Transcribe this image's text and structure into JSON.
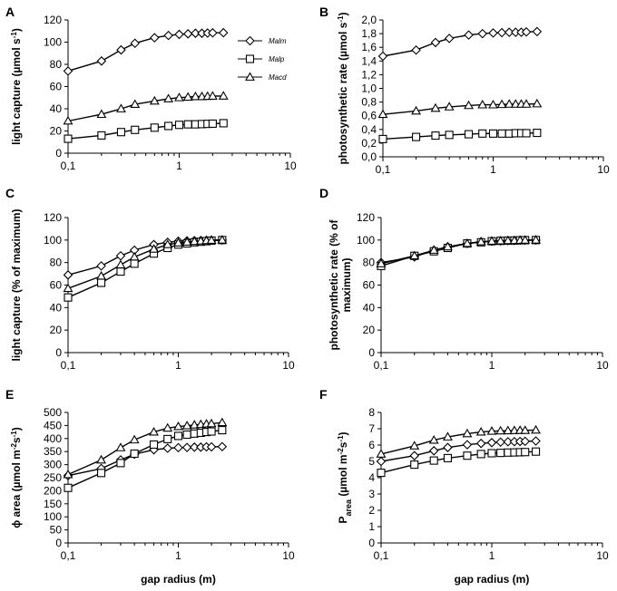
{
  "chart_data": [
    {
      "type": "line",
      "panel": "A",
      "xscale": "log",
      "xlim": [
        0.1,
        10
      ],
      "xticks": [
        "0,1",
        "1",
        "10"
      ],
      "xlabel": "",
      "ylabel": [
        "light capture (µmol s",
        "-1",
        ")"
      ],
      "ylim": [
        0,
        120
      ],
      "yticks": [
        "0",
        "20",
        "40",
        "60",
        "80",
        "100",
        "120"
      ],
      "x": [
        0.1,
        0.2,
        0.3,
        0.4,
        0.6,
        0.8,
        1.0,
        1.2,
        1.4,
        1.6,
        1.8,
        2.0,
        2.5
      ],
      "legend": {
        "placement": "top-right",
        "entries": [
          "Malm",
          "Malp",
          "Macd"
        ]
      },
      "series": [
        {
          "name": "Malm",
          "marker": "diamond",
          "values": [
            74,
            83,
            93,
            99,
            104,
            106,
            107,
            107.5,
            108,
            108,
            108.2,
            108.4,
            108.5
          ]
        },
        {
          "name": "Malp",
          "marker": "square",
          "values": [
            13,
            16,
            19,
            21,
            23,
            24.5,
            25.5,
            26,
            26,
            26.2,
            26.4,
            26.6,
            27
          ]
        },
        {
          "name": "Macd",
          "marker": "triangle",
          "values": [
            29,
            35,
            40,
            44,
            47,
            49,
            50,
            50.5,
            51,
            51,
            51.2,
            51.4,
            51.5
          ]
        }
      ]
    },
    {
      "type": "line",
      "panel": "B",
      "xscale": "log",
      "xlim": [
        0.1,
        10
      ],
      "xticks": [
        "0,1",
        "1",
        "10"
      ],
      "xlabel": "",
      "ylabel": [
        "photosynthetic rate (µmol s",
        "-1",
        ")"
      ],
      "ylim": [
        0,
        2.0
      ],
      "yticks": [
        "0,0",
        "0,2",
        "0,4",
        "0,6",
        "0,8",
        "1,0",
        "1,2",
        "1,4",
        "1,6",
        "1,8",
        "2,0"
      ],
      "x": [
        0.1,
        0.2,
        0.3,
        0.4,
        0.6,
        0.8,
        1.0,
        1.2,
        1.4,
        1.6,
        1.8,
        2.0,
        2.5
      ],
      "series": [
        {
          "name": "Malm",
          "marker": "diamond",
          "values": [
            1.47,
            1.56,
            1.67,
            1.73,
            1.78,
            1.8,
            1.81,
            1.815,
            1.82,
            1.82,
            1.82,
            1.825,
            1.83
          ]
        },
        {
          "name": "Malp",
          "marker": "square",
          "values": [
            0.26,
            0.29,
            0.31,
            0.32,
            0.33,
            0.34,
            0.34,
            0.34,
            0.34,
            0.345,
            0.345,
            0.345,
            0.35
          ]
        },
        {
          "name": "Macd",
          "marker": "triangle",
          "values": [
            0.62,
            0.67,
            0.71,
            0.73,
            0.75,
            0.76,
            0.76,
            0.765,
            0.77,
            0.77,
            0.77,
            0.77,
            0.775
          ]
        }
      ]
    },
    {
      "type": "line",
      "panel": "C",
      "xscale": "log",
      "xlim": [
        0.1,
        10
      ],
      "xticks": [
        "0,1",
        "1",
        "10"
      ],
      "xlabel": "",
      "ylabel": [
        "light capture (% of maximum)"
      ],
      "ylim": [
        0,
        120
      ],
      "yticks": [
        "0",
        "20",
        "40",
        "60",
        "80",
        "100",
        "120"
      ],
      "x": [
        0.1,
        0.2,
        0.3,
        0.4,
        0.6,
        0.8,
        1.0,
        1.2,
        1.4,
        1.6,
        1.8,
        2.0,
        2.5
      ],
      "series": [
        {
          "name": "Malm",
          "marker": "diamond",
          "values": [
            69,
            77,
            86,
            91,
            96,
            98,
            99,
            99.3,
            99.5,
            99.6,
            99.8,
            99.9,
            100
          ]
        },
        {
          "name": "Malp",
          "marker": "square",
          "values": [
            49,
            62,
            72,
            79,
            88,
            93,
            96,
            97,
            98,
            98.5,
            99,
            99.5,
            100
          ]
        },
        {
          "name": "Macd",
          "marker": "triangle",
          "values": [
            57,
            68,
            78,
            85,
            92,
            96,
            97.5,
            98.2,
            98.8,
            99.2,
            99.5,
            99.8,
            100
          ]
        }
      ]
    },
    {
      "type": "line",
      "panel": "D",
      "xscale": "log",
      "xlim": [
        0.1,
        10
      ],
      "xticks": [
        "0,1",
        "1",
        "10"
      ],
      "xlabel": "",
      "ylabel": [
        "photosynthetic rate (% of",
        "maximum)"
      ],
      "ylim": [
        0,
        120
      ],
      "yticks": [
        "0",
        "20",
        "40",
        "60",
        "80",
        "100",
        "120"
      ],
      "x": [
        0.1,
        0.2,
        0.3,
        0.4,
        0.6,
        0.8,
        1.0,
        1.2,
        1.4,
        1.6,
        1.8,
        2.0,
        2.5
      ],
      "series": [
        {
          "name": "Malm",
          "marker": "diamond",
          "values": [
            80,
            85,
            91,
            94,
            97,
            98.5,
            99,
            99.3,
            99.5,
            99.6,
            99.8,
            99.9,
            100
          ]
        },
        {
          "name": "Malp",
          "marker": "square",
          "values": [
            77,
            86,
            90,
            93,
            97,
            98,
            99,
            99.3,
            99.5,
            99.6,
            99.8,
            99.9,
            100
          ]
        },
        {
          "name": "Macd",
          "marker": "triangle",
          "values": [
            79,
            86,
            91,
            94,
            97,
            98.5,
            99,
            99.3,
            99.5,
            99.6,
            99.8,
            99.9,
            100
          ]
        }
      ]
    },
    {
      "type": "line",
      "panel": "E",
      "xscale": "log",
      "xlim": [
        0.1,
        10
      ],
      "xticks": [
        "0,1",
        "1",
        "10"
      ],
      "xlabel": "gap radius (m)",
      "ylabel": [
        "ϕ area (µmol m",
        "-2",
        "s",
        "-1",
        ")"
      ],
      "ylim": [
        0,
        500
      ],
      "yticks": [
        "0",
        "50",
        "100",
        "150",
        "200",
        "250",
        "300",
        "350",
        "400",
        "450",
        "500"
      ],
      "x": [
        0.1,
        0.2,
        0.3,
        0.4,
        0.6,
        0.8,
        1.0,
        1.2,
        1.4,
        1.6,
        1.8,
        2.0,
        2.5
      ],
      "series": [
        {
          "name": "Malm",
          "marker": "diamond",
          "values": [
            258,
            285,
            318,
            340,
            357,
            363,
            365,
            366,
            367,
            367,
            368,
            368,
            369
          ]
        },
        {
          "name": "Malp",
          "marker": "square",
          "values": [
            211,
            268,
            306,
            342,
            377,
            398,
            410,
            415,
            419,
            422,
            425,
            427,
            432
          ]
        },
        {
          "name": "Macd",
          "marker": "triangle",
          "values": [
            262,
            318,
            365,
            395,
            425,
            440,
            446,
            449,
            452,
            454,
            456,
            457,
            461
          ]
        }
      ]
    },
    {
      "type": "line",
      "panel": "F",
      "xscale": "log",
      "xlim": [
        0.1,
        10
      ],
      "xticks": [
        "0,1",
        "1",
        "10"
      ],
      "xlabel": "gap radius (m)",
      "ylabel": [
        "P",
        "area",
        " (µmol m",
        "-2",
        "s",
        "-1",
        ")"
      ],
      "ylim": [
        0,
        8
      ],
      "yticks": [
        "0",
        "1",
        "2",
        "3",
        "4",
        "5",
        "6",
        "7",
        "8"
      ],
      "x": [
        0.1,
        0.2,
        0.3,
        0.4,
        0.6,
        0.8,
        1.0,
        1.2,
        1.4,
        1.6,
        1.8,
        2.0,
        2.5
      ],
      "series": [
        {
          "name": "Malm",
          "marker": "diamond",
          "values": [
            5.0,
            5.35,
            5.65,
            5.85,
            6.02,
            6.1,
            6.15,
            6.18,
            6.2,
            6.21,
            6.22,
            6.23,
            6.25
          ]
        },
        {
          "name": "Malp",
          "marker": "square",
          "values": [
            4.3,
            4.8,
            5.05,
            5.2,
            5.35,
            5.45,
            5.5,
            5.52,
            5.54,
            5.55,
            5.56,
            5.57,
            5.6
          ]
        },
        {
          "name": "Macd",
          "marker": "triangle",
          "values": [
            5.45,
            5.95,
            6.3,
            6.5,
            6.7,
            6.8,
            6.85,
            6.87,
            6.88,
            6.89,
            6.9,
            6.9,
            6.92
          ]
        }
      ]
    }
  ]
}
